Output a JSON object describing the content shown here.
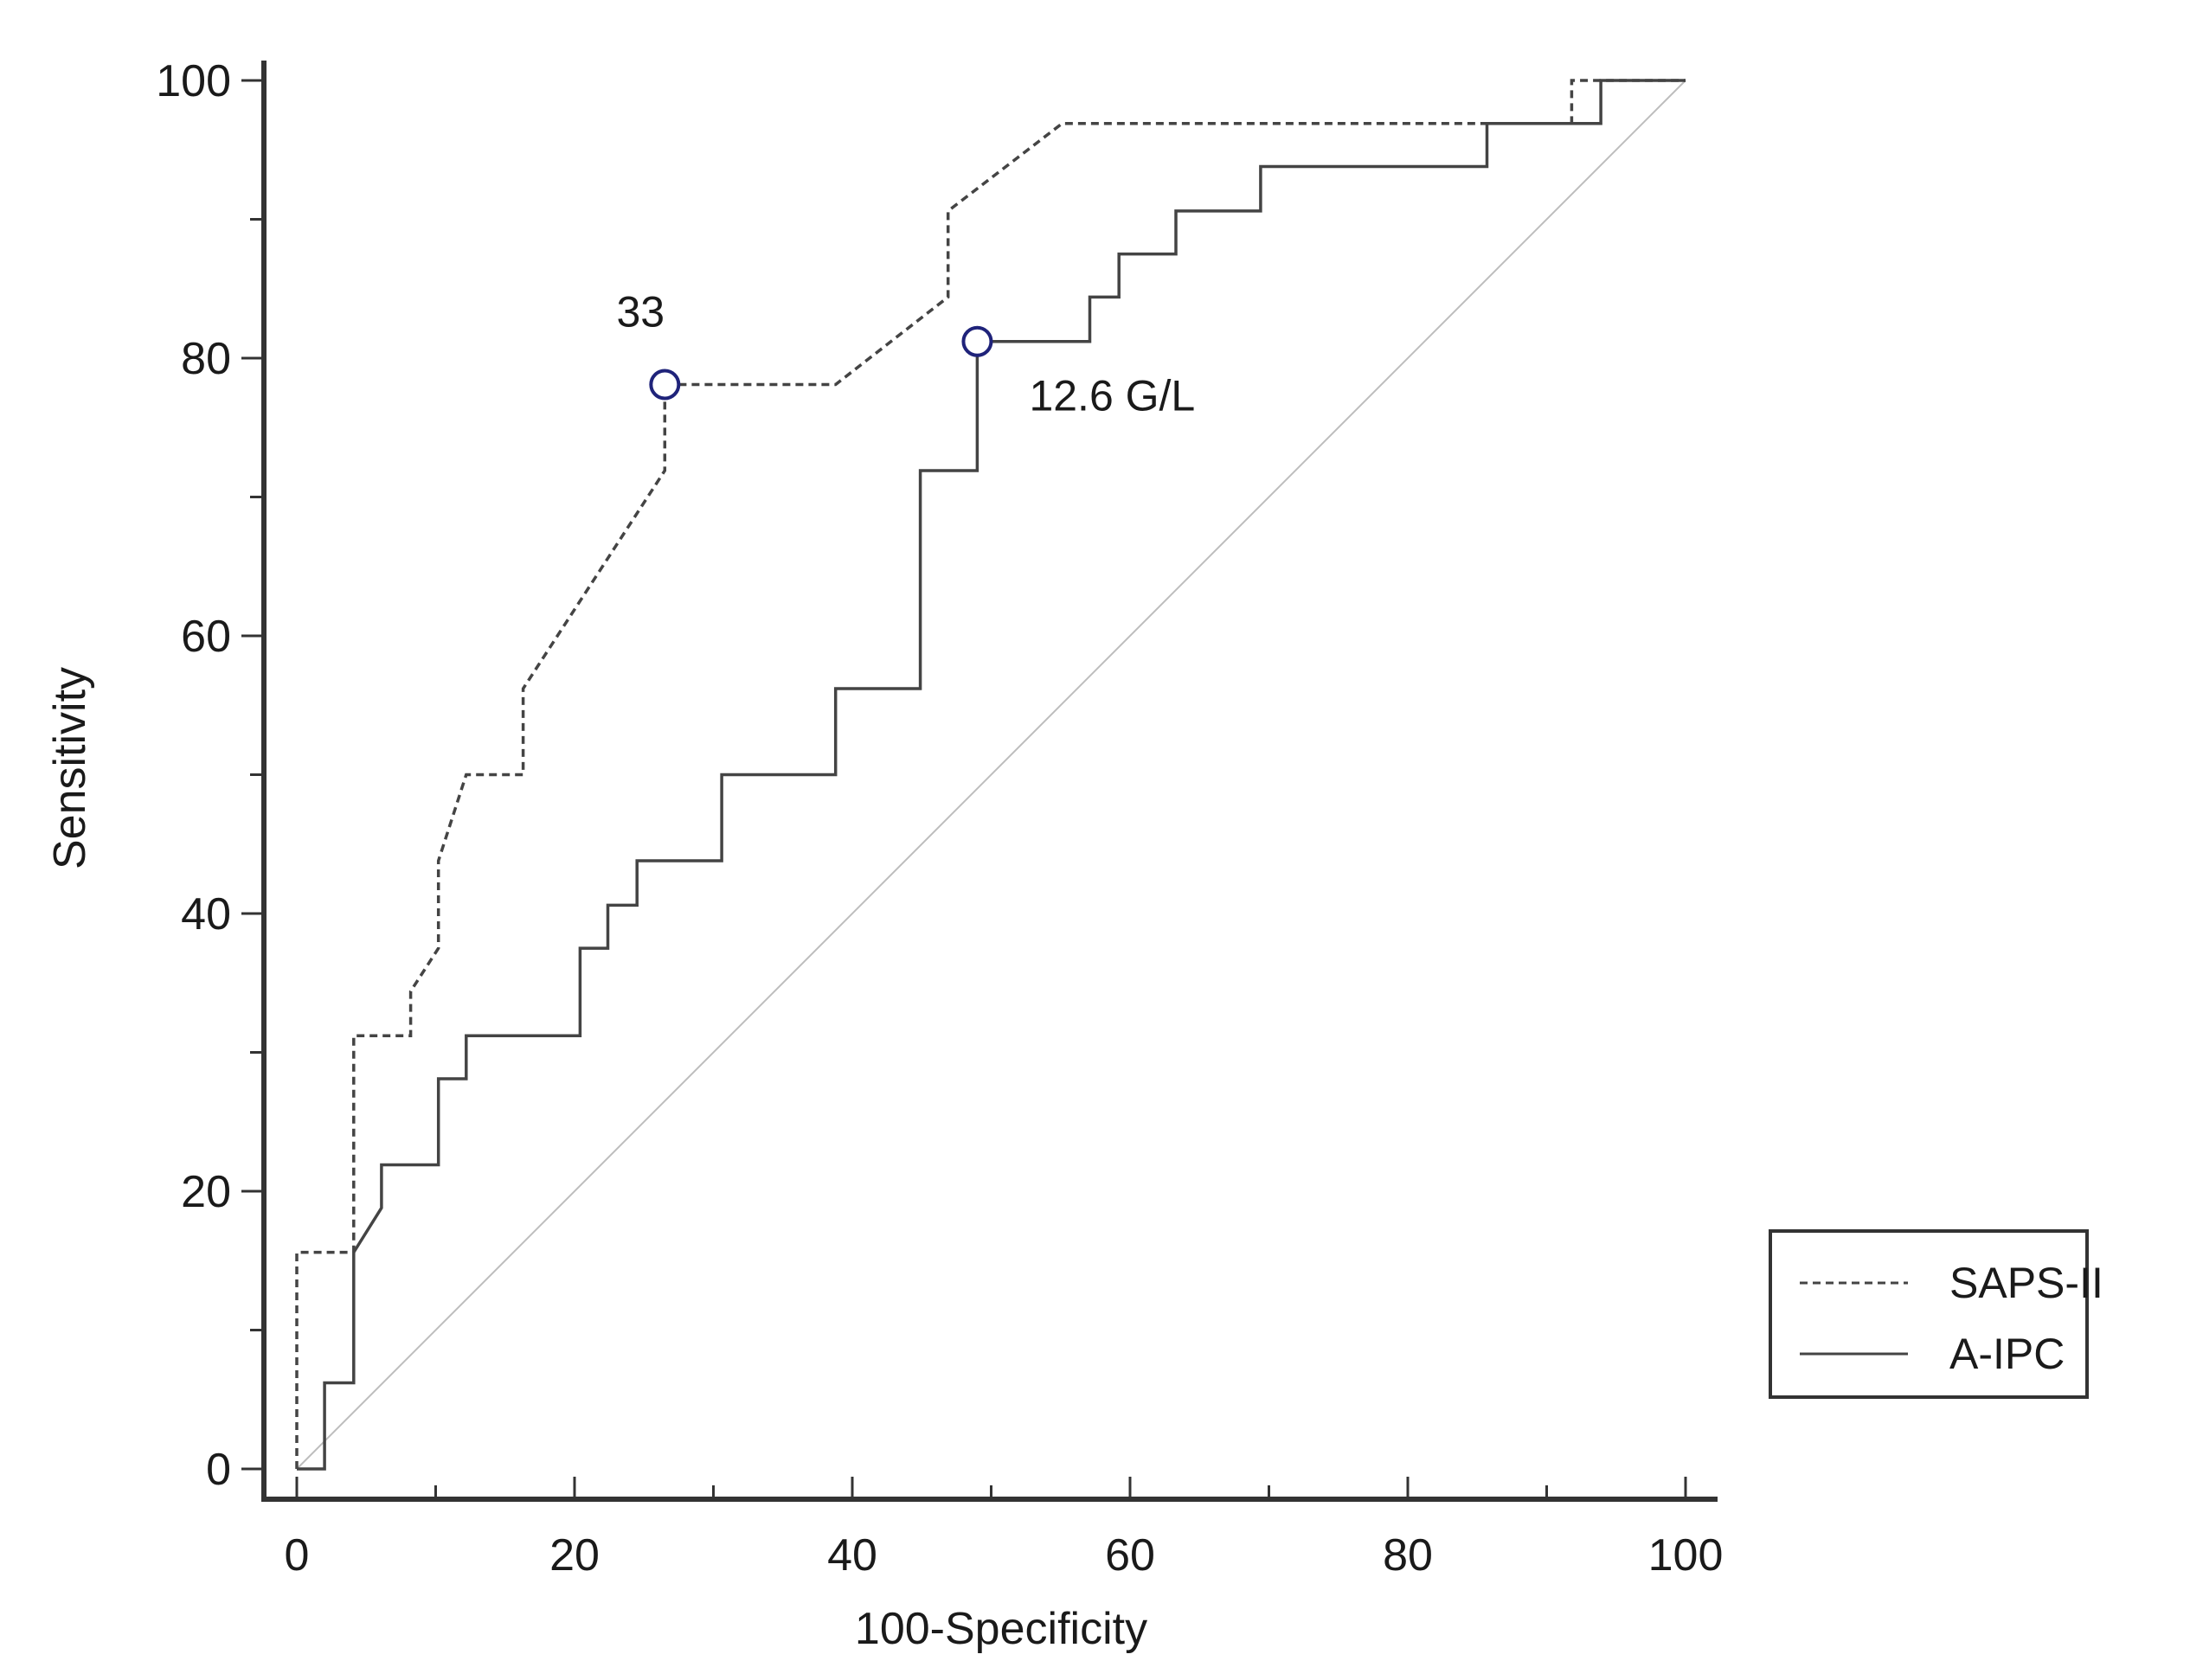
{
  "chart_data": {
    "type": "line",
    "xlabel": "100-Specificity",
    "ylabel": "Sensitivity",
    "xlim": [
      0,
      100
    ],
    "ylim": [
      0,
      100
    ],
    "x_ticks": [
      0,
      20,
      40,
      60,
      80,
      100
    ],
    "y_ticks": [
      0,
      20,
      40,
      60,
      80,
      100
    ],
    "grid": false,
    "legend_position": "bottom-right",
    "reference_line": {
      "from": [
        0,
        0
      ],
      "to": [
        100,
        100
      ],
      "color": "#bdbdbd"
    },
    "series": [
      {
        "name": "SAPS-II",
        "style": "dashed",
        "color": "#444444",
        "points": [
          [
            0,
            0
          ],
          [
            0,
            15.6
          ],
          [
            4.1,
            15.6
          ],
          [
            4.1,
            31.2
          ],
          [
            8.2,
            31.2
          ],
          [
            8.2,
            34.4
          ],
          [
            10.2,
            37.5
          ],
          [
            10.2,
            43.8
          ],
          [
            12.2,
            50
          ],
          [
            16.3,
            50
          ],
          [
            16.3,
            56.2
          ],
          [
            26.5,
            71.9
          ],
          [
            26.5,
            78.1
          ],
          [
            38.8,
            78.1
          ],
          [
            46.9,
            84.4
          ],
          [
            46.9,
            90.6
          ],
          [
            55.1,
            96.9
          ],
          [
            91.8,
            96.9
          ],
          [
            91.8,
            100
          ],
          [
            100,
            100
          ]
        ]
      },
      {
        "name": "A-IPC",
        "style": "solid",
        "color": "#444444",
        "points": [
          [
            0,
            0
          ],
          [
            2,
            0
          ],
          [
            2,
            6.2
          ],
          [
            4.1,
            6.2
          ],
          [
            4.1,
            15.6
          ],
          [
            6.1,
            18.8
          ],
          [
            6.1,
            21.9
          ],
          [
            10.2,
            21.9
          ],
          [
            10.2,
            28.1
          ],
          [
            12.2,
            28.1
          ],
          [
            12.2,
            31.2
          ],
          [
            20.4,
            31.2
          ],
          [
            20.4,
            37.5
          ],
          [
            22.4,
            37.5
          ],
          [
            22.4,
            40.6
          ],
          [
            24.5,
            40.6
          ],
          [
            24.5,
            43.8
          ],
          [
            30.6,
            43.8
          ],
          [
            30.6,
            50
          ],
          [
            38.8,
            50
          ],
          [
            38.8,
            56.2
          ],
          [
            44.9,
            56.2
          ],
          [
            44.9,
            71.9
          ],
          [
            49,
            71.9
          ],
          [
            49,
            81.2
          ],
          [
            57.1,
            81.2
          ],
          [
            57.1,
            84.4
          ],
          [
            59.2,
            84.4
          ],
          [
            59.2,
            87.5
          ],
          [
            63.3,
            87.5
          ],
          [
            63.3,
            90.6
          ],
          [
            69.4,
            90.6
          ],
          [
            69.4,
            93.8
          ],
          [
            85.7,
            93.8
          ],
          [
            85.7,
            96.9
          ],
          [
            93.9,
            96.9
          ],
          [
            93.9,
            100
          ],
          [
            100,
            100
          ]
        ]
      }
    ],
    "annotations": [
      {
        "text": "33",
        "x": 26.5,
        "y": 78.1,
        "marker": "circle",
        "label_side": "above"
      },
      {
        "text": "12.6 G/L",
        "x": 49,
        "y": 81.2,
        "marker": "circle",
        "label_side": "below-right"
      }
    ],
    "marker_color": "#1f237a"
  }
}
